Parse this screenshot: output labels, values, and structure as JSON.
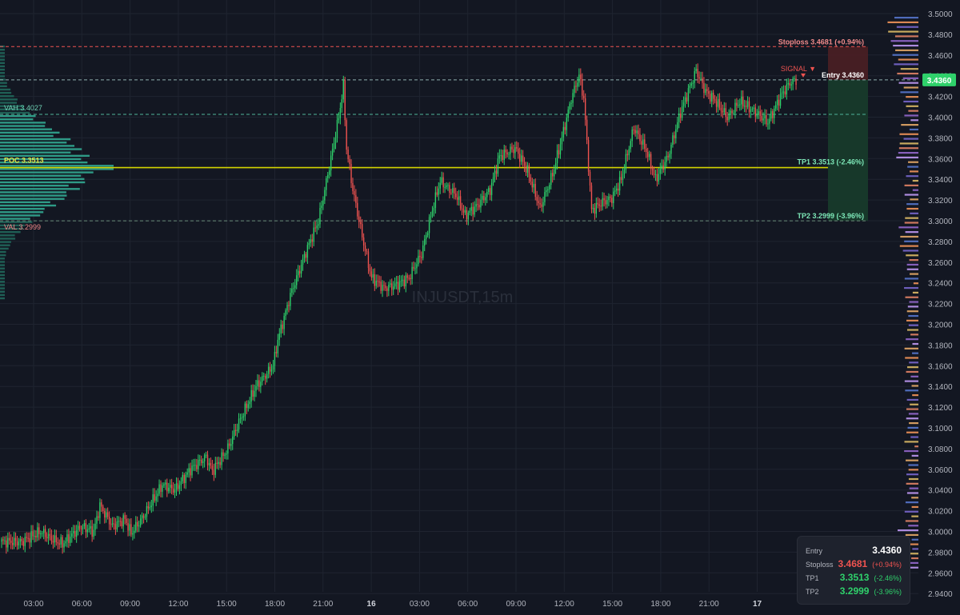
{
  "colors": {
    "background": "#131722",
    "grid": "#1f2430",
    "bull": "#26a69a",
    "bull_bright": "#2fd16b",
    "bear": "#ef5350",
    "poc": "#d4d400",
    "entry": "#d1d4dc",
    "stoploss": "#ef5350",
    "tp": "#5ee2a8",
    "profile_in": "#2e9a86",
    "profile_out": "#1f5f55"
  },
  "chart_data": {
    "type": "candlestick",
    "symbol_watermark": "INJUSDT,15m",
    "x_tick_labels": [
      "03:00",
      "06:00",
      "09:00",
      "12:00",
      "15:00",
      "18:00",
      "21:00",
      "16",
      "03:00",
      "06:00",
      "09:00",
      "12:00",
      "15:00",
      "18:00",
      "21:00",
      "17"
    ],
    "y_tick_labels": [
      "3.5000",
      "3.4800",
      "3.4600",
      "3.4400",
      "3.4200",
      "3.4000",
      "3.3800",
      "3.3600",
      "3.3400",
      "3.3200",
      "3.3000",
      "3.2800",
      "3.2600",
      "3.2400",
      "3.2200",
      "3.2000",
      "3.1800",
      "3.1600",
      "3.1400",
      "3.1200",
      "3.1000",
      "3.0800",
      "3.0600",
      "3.0400",
      "3.0200",
      "3.0000",
      "2.9800",
      "2.9600",
      "2.9400"
    ],
    "ylim": [
      2.94,
      3.5
    ],
    "grid": true,
    "last_price_label": "3.4360",
    "levels": [
      {
        "name": "stoploss",
        "price": 3.4681,
        "label": "Stoploss 3.4681 (+0.94%)"
      },
      {
        "name": "entry",
        "price": 3.436,
        "label": "Entry 3.4360"
      },
      {
        "name": "vah",
        "price": 3.4027,
        "label": "VAH  3.4027"
      },
      {
        "name": "poc",
        "price": 3.3513,
        "label": "POC  3.3513"
      },
      {
        "name": "tp1",
        "price": 3.3513,
        "label": "TP1 3.3513 (-2.46%)"
      },
      {
        "name": "val",
        "price": 3.2999,
        "label": "VAL  3.2999"
      },
      {
        "name": "tp2",
        "price": 3.2999,
        "label": "TP2 3.2999 (-3.96%)"
      }
    ],
    "signal_label": "SIGNAL ▼",
    "path_key_points": [
      [
        0,
        2.99
      ],
      [
        14,
        2.99
      ],
      [
        26,
        3.0
      ],
      [
        34,
        2.992
      ],
      [
        40,
        2.988
      ],
      [
        52,
        3.005
      ],
      [
        60,
        3.0
      ],
      [
        64,
        3.025
      ],
      [
        72,
        3.005
      ],
      [
        80,
        3.012
      ],
      [
        84,
        2.998
      ],
      [
        92,
        3.015
      ],
      [
        104,
        3.045
      ],
      [
        112,
        3.04
      ],
      [
        122,
        3.06
      ],
      [
        132,
        3.072
      ],
      [
        136,
        3.058
      ],
      [
        146,
        3.08
      ],
      [
        152,
        3.102
      ],
      [
        164,
        3.14
      ],
      [
        175,
        3.16
      ],
      [
        178,
        3.185
      ],
      [
        186,
        3.228
      ],
      [
        196,
        3.27
      ],
      [
        204,
        3.3
      ],
      [
        212,
        3.36
      ],
      [
        217,
        3.4
      ],
      [
        220,
        3.43
      ],
      [
        222,
        3.37
      ],
      [
        226,
        3.33
      ],
      [
        232,
        3.285
      ],
      [
        238,
        3.245
      ],
      [
        246,
        3.235
      ],
      [
        254,
        3.238
      ],
      [
        262,
        3.245
      ],
      [
        270,
        3.268
      ],
      [
        276,
        3.305
      ],
      [
        282,
        3.338
      ],
      [
        292,
        3.325
      ],
      [
        298,
        3.305
      ],
      [
        306,
        3.315
      ],
      [
        314,
        3.33
      ],
      [
        320,
        3.362
      ],
      [
        330,
        3.37
      ],
      [
        338,
        3.348
      ],
      [
        346,
        3.312
      ],
      [
        354,
        3.345
      ],
      [
        360,
        3.38
      ],
      [
        366,
        3.418
      ],
      [
        371,
        3.44
      ],
      [
        374,
        3.418
      ],
      [
        379,
        3.31
      ],
      [
        386,
        3.318
      ],
      [
        392,
        3.322
      ],
      [
        398,
        3.34
      ],
      [
        406,
        3.39
      ],
      [
        414,
        3.368
      ],
      [
        420,
        3.34
      ],
      [
        428,
        3.362
      ],
      [
        436,
        3.405
      ],
      [
        446,
        3.445
      ],
      [
        452,
        3.425
      ],
      [
        458,
        3.416
      ],
      [
        466,
        3.4
      ],
      [
        474,
        3.415
      ],
      [
        484,
        3.405
      ],
      [
        492,
        3.395
      ],
      [
        500,
        3.42
      ],
      [
        506,
        3.433
      ],
      [
        510,
        3.436
      ]
    ]
  },
  "volume_profile": {
    "right_bins_note": "price-level volume bars along right axis",
    "left_value_area": [
      3.2999,
      3.4027
    ]
  },
  "info_panel": {
    "entry_label": "Entry",
    "entry_value": "3.4360",
    "stoploss_label": "Stoploss",
    "stoploss_value": "3.4681",
    "stoploss_pct": "(+0.94%)",
    "tp1_label": "TP1",
    "tp1_value": "3.3513",
    "tp1_pct": "(-2.46%)",
    "tp2_label": "TP2",
    "tp2_value": "3.2999",
    "tp2_pct": "(-3.96%)"
  }
}
